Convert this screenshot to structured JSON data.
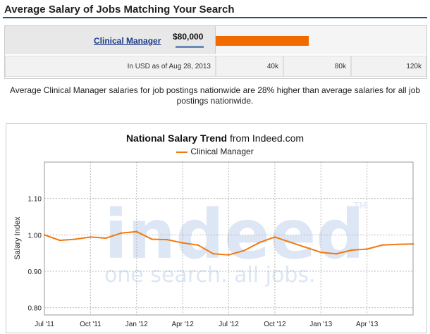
{
  "header": {
    "title": "Average Salary of Jobs Matching Your Search"
  },
  "salary": {
    "job_title": "Clinical Manager",
    "amount": "$80,000",
    "amount_value": 80000,
    "bar_max": 120000,
    "note": "In USD as of Aug 28, 2013",
    "scale_labels": [
      "40k",
      "80k",
      "120k"
    ]
  },
  "description": "Average Clinical Manager salaries for job postings nationwide are 28% higher than average salaries for all job postings nationwide.",
  "chart": {
    "title_bold": "National Salary Trend",
    "title_rest": " from Indeed.com",
    "watermark_main": "indeed",
    "watermark_tm": "TM",
    "watermark_tagline": "one search. all jobs."
  },
  "colors": {
    "line": "#f07a10",
    "bar": "#f06a00",
    "link": "#1a3a8a",
    "header_rule": "#2a4a8a"
  },
  "chart_data": {
    "type": "line",
    "title": "National Salary Trend from Indeed.com",
    "ylabel": "Salary Index",
    "xlabel": "",
    "ylim": [
      0.78,
      1.2
    ],
    "yticks": [
      0.8,
      0.9,
      1.0,
      1.1
    ],
    "ytick_labels": [
      "0.80",
      "0.90",
      "1.00",
      "1.10"
    ],
    "xtick_labels": [
      "Jul '11",
      "Oct '11",
      "Jan '12",
      "Apr '12",
      "Jul '12",
      "Oct '12",
      "Jan '13",
      "Apr '13"
    ],
    "xtick_index": [
      0,
      3,
      6,
      9,
      12,
      15,
      18,
      21
    ],
    "grid": true,
    "legend": "top-center",
    "series": [
      {
        "name": "Clinical Manager",
        "x": [
          "2011-07",
          "2011-08",
          "2011-09",
          "2011-10",
          "2011-11",
          "2011-12",
          "2012-01",
          "2012-02",
          "2012-03",
          "2012-04",
          "2012-05",
          "2012-06",
          "2012-07",
          "2012-08",
          "2012-09",
          "2012-10",
          "2012-11",
          "2012-12",
          "2013-01",
          "2013-02",
          "2013-03",
          "2013-04",
          "2013-05",
          "2013-06",
          "2013-07"
        ],
        "values": [
          1.0,
          0.985,
          0.988,
          0.994,
          0.991,
          1.005,
          1.009,
          0.988,
          0.987,
          0.978,
          0.972,
          0.948,
          0.945,
          0.957,
          0.979,
          0.994,
          0.98,
          0.966,
          0.952,
          0.948,
          0.958,
          0.961,
          0.972,
          0.974,
          0.975
        ]
      }
    ]
  }
}
